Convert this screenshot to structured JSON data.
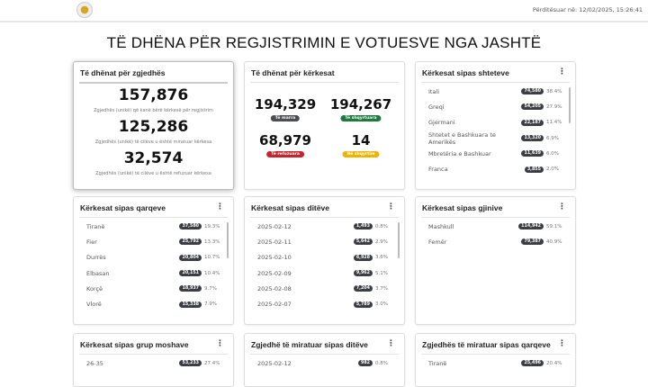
{
  "header": {
    "updated": "Përditësuar në: 12/02/2025, 15:26:41"
  },
  "title": "TË DHËNA PËR REGJISTRIMIN E VOTUESVE NGA JASHTË",
  "voters": {
    "title": "Të dhënat për zgjedhës",
    "stats": [
      {
        "value": "157,876",
        "label": "Zgjedhës (unikë) që kanë bërë kërkesë për regjistrim"
      },
      {
        "value": "125,286",
        "label": "Zgjedhës (unikë) të cilëve u është miratuar kërkesa"
      },
      {
        "value": "32,574",
        "label": "Zgjedhës (unikë) të cilëve u është refuzuar kërkesa"
      }
    ]
  },
  "requests": {
    "title": "Të dhënat për kërkesat",
    "stats": [
      {
        "value": "194,329",
        "label": "Të marra",
        "color": "#4a4e55"
      },
      {
        "value": "194,267",
        "label": "Të shqyrtuara",
        "color": "#1e7a3e"
      },
      {
        "value": "68,979",
        "label": "Të refuzuara",
        "color": "#c8232c"
      },
      {
        "value": "14",
        "label": "Në shqyrtim",
        "color": "#f0b400"
      }
    ]
  },
  "lists": [
    {
      "title": "Kërkesat sipas shteteve",
      "items": [
        [
          "Itali",
          "74,580",
          "38.4%"
        ],
        [
          "Greqi",
          "54,205",
          "27.9%"
        ],
        [
          "Gjermani",
          "22,187",
          "11.4%"
        ],
        [
          "Shtetet e Bashkuara te Amerikës",
          "13,320",
          "6.9%"
        ],
        [
          "Mbretëria e Bashkuar",
          "11,639",
          "6.0%"
        ],
        [
          "Franca",
          "3,855",
          "2.0%"
        ]
      ]
    },
    {
      "title": "Kërkesat sipas qarqeve",
      "items": [
        [
          "Tiranë",
          "37,580",
          "19.3%"
        ],
        [
          "Fier",
          "25,792",
          "13.3%"
        ],
        [
          "Durrës",
          "20,804",
          "10.7%"
        ],
        [
          "Elbasan",
          "20,151",
          "10.4%"
        ],
        [
          "Korçë",
          "18,937",
          "9.7%"
        ],
        [
          "Vlorë",
          "15,338",
          "7.9%"
        ]
      ]
    },
    {
      "title": "Kërkesat sipas ditëve",
      "items": [
        [
          "2025-02-12",
          "1,493",
          "0.8%"
        ],
        [
          "2025-02-11",
          "5,642",
          "2.9%"
        ],
        [
          "2025-02-10",
          "6,928",
          "3.6%"
        ],
        [
          "2025-02-09",
          "9,962",
          "5.1%"
        ],
        [
          "2025-02-08",
          "7,204",
          "3.7%"
        ],
        [
          "2025-02-07",
          "5,789",
          "3.0%"
        ]
      ]
    },
    {
      "title": "Kërkesat sipas gjinive",
      "items": [
        [
          "Mashkull",
          "114,942",
          "59.1%"
        ],
        [
          "Femër",
          "79,387",
          "40.9%"
        ]
      ]
    },
    {
      "title": "Kërkesat sipas grup moshave",
      "items": [
        [
          "26-35",
          "53,233",
          "27.4%"
        ]
      ]
    },
    {
      "title": "Zgjedhë të miratuar sipas ditëve",
      "items": [
        [
          "2025-02-12",
          "982",
          "0.8%"
        ]
      ]
    },
    {
      "title": "Zgjedhës të miratuar sipas qarqeve",
      "items": [
        [
          "Tiranë",
          "25,496",
          "20.4%"
        ]
      ]
    }
  ],
  "menu_icon": "⋮"
}
